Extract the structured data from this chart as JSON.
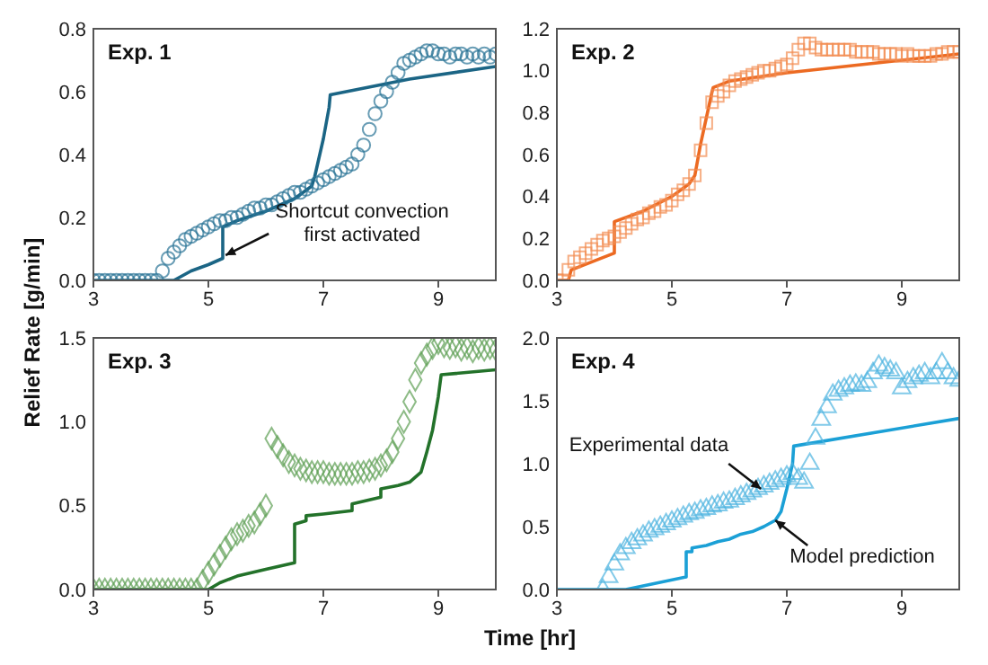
{
  "chart_data": [
    {
      "type": "scatter",
      "title": "Exp. 1",
      "ylabel": "Relief Rate [g/min]",
      "xlim": [
        3,
        10
      ],
      "xticks": [
        3,
        5,
        7,
        9
      ],
      "ylim": [
        0,
        0.8
      ],
      "yticks": [
        {
          "value": 0,
          "label": "0.0"
        },
        0.2,
        0.4,
        0.6,
        0.8
      ],
      "x": [
        3.0,
        3.1,
        3.2,
        3.3,
        3.4,
        3.5,
        3.6,
        3.7,
        3.8,
        3.9,
        4.0,
        4.1,
        4.2,
        4.3,
        4.4,
        4.5,
        4.6,
        4.7,
        4.8,
        4.9,
        5.0,
        5.1,
        5.2,
        5.3,
        5.4,
        5.5,
        5.6,
        5.7,
        5.8,
        5.9,
        6.0,
        6.1,
        6.2,
        6.3,
        6.4,
        6.5,
        6.6,
        6.7,
        6.8,
        6.9,
        7.0,
        7.1,
        7.2,
        7.3,
        7.4,
        7.5,
        7.6,
        7.7,
        7.8,
        7.9,
        8.0,
        8.1,
        8.2,
        8.3,
        8.4,
        8.5,
        8.6,
        8.7,
        8.8,
        8.9,
        9.0,
        9.1,
        9.2,
        9.3,
        9.4,
        9.5,
        9.6,
        9.7,
        9.8,
        9.9,
        10.0
      ],
      "series": [
        {
          "marker": "circle",
          "color": "#2a7396",
          "values": [
            0,
            0,
            0,
            0,
            0,
            0,
            0,
            0,
            0,
            0,
            0,
            0,
            0.03,
            0.07,
            0.09,
            0.11,
            0.13,
            0.14,
            0.15,
            0.16,
            0.17,
            0.18,
            0.19,
            0.19,
            0.2,
            0.2,
            0.21,
            0.22,
            0.23,
            0.23,
            0.24,
            0.24,
            0.25,
            0.26,
            0.27,
            0.28,
            0.28,
            0.29,
            0.3,
            0.31,
            0.32,
            0.33,
            0.34,
            0.35,
            0.36,
            0.37,
            0.4,
            0.43,
            0.48,
            0.53,
            0.57,
            0.6,
            0.63,
            0.66,
            0.69,
            0.7,
            0.71,
            0.72,
            0.73,
            0.73,
            0.72,
            0.72,
            0.71,
            0.72,
            0.72,
            0.71,
            0.72,
            0.71,
            0.72,
            0.71,
            0.72
          ]
        },
        {
          "type": "line",
          "marker": "none",
          "color": "#1b6585",
          "x": [
            3,
            4.4,
            4.7,
            5.0,
            5.25,
            5.25,
            5.5,
            6,
            6.5,
            6.8,
            6.85,
            7.0,
            7.1,
            7.12,
            8.5,
            10
          ],
          "values": [
            0,
            0,
            0.03,
            0.05,
            0.07,
            0.17,
            0.19,
            0.22,
            0.26,
            0.3,
            0.33,
            0.45,
            0.55,
            0.59,
            0.64,
            0.68
          ]
        }
      ],
      "annotations": [
        {
          "text": "Shortcut convection first activated",
          "x": 5.3,
          "y": 0.08
        }
      ]
    },
    {
      "type": "scatter",
      "title": "Exp. 2",
      "xlim": [
        3,
        10
      ],
      "xticks": [
        3,
        5,
        7,
        9
      ],
      "ylim": [
        0,
        1.2
      ],
      "yticks": [
        {
          "value": 0,
          "label": "0.0"
        },
        0.2,
        0.4,
        0.6,
        0.8,
        {
          "value": 1,
          "label": "1.0"
        },
        1.2
      ],
      "x": [
        3.0,
        3.1,
        3.2,
        3.3,
        3.4,
        3.5,
        3.6,
        3.7,
        3.8,
        3.9,
        4.0,
        4.1,
        4.2,
        4.3,
        4.4,
        4.5,
        4.6,
        4.7,
        4.8,
        4.9,
        5.0,
        5.1,
        5.2,
        5.3,
        5.4,
        5.5,
        5.6,
        5.7,
        5.8,
        5.9,
        6.0,
        6.1,
        6.2,
        6.3,
        6.4,
        6.5,
        6.6,
        6.7,
        6.8,
        6.9,
        7.0,
        7.1,
        7.2,
        7.3,
        7.4,
        7.5,
        7.6,
        7.7,
        7.8,
        7.9,
        8.0,
        8.1,
        8.2,
        8.3,
        8.4,
        8.5,
        8.6,
        8.7,
        8.8,
        8.9,
        9.0,
        9.1,
        9.2,
        9.3,
        9.4,
        9.5,
        9.6,
        9.7,
        9.8,
        9.9,
        10.0
      ],
      "series": [
        {
          "marker": "square",
          "color": "#f28c50",
          "values": [
            0,
            0,
            0.05,
            0.09,
            0.11,
            0.13,
            0.15,
            0.17,
            0.19,
            0.2,
            0.21,
            0.23,
            0.25,
            0.27,
            0.29,
            0.3,
            0.32,
            0.33,
            0.35,
            0.36,
            0.38,
            0.41,
            0.43,
            0.46,
            0.5,
            0.62,
            0.75,
            0.85,
            0.88,
            0.9,
            0.93,
            0.95,
            0.96,
            0.97,
            0.98,
            0.99,
            1.0,
            1.0,
            1.01,
            1.02,
            1.03,
            1.06,
            1.1,
            1.13,
            1.13,
            1.11,
            1.1,
            1.1,
            1.1,
            1.1,
            1.1,
            1.1,
            1.09,
            1.09,
            1.09,
            1.09,
            1.08,
            1.08,
            1.08,
            1.08,
            1.07,
            1.08,
            1.07,
            1.07,
            1.07,
            1.07,
            1.08,
            1.08,
            1.09,
            1.09,
            1.09
          ]
        },
        {
          "type": "line",
          "marker": "none",
          "color": "#ec6a22",
          "x": [
            3,
            3.2,
            3.25,
            4.0,
            4.0,
            4.5,
            5.0,
            5.3,
            5.4,
            5.5,
            5.7,
            5.72,
            6.0,
            7.0,
            8.0,
            9.0,
            10
          ],
          "values": [
            0,
            0,
            0.05,
            0.13,
            0.28,
            0.33,
            0.4,
            0.46,
            0.5,
            0.65,
            0.9,
            0.92,
            0.95,
            0.99,
            1.02,
            1.05,
            1.08
          ]
        }
      ]
    },
    {
      "type": "scatter",
      "title": "Exp. 3",
      "xlabel": "Time [hr]",
      "xlim": [
        3,
        10
      ],
      "xticks": [
        3,
        5,
        7,
        9
      ],
      "ylim": [
        0,
        1.5
      ],
      "yticks": [
        {
          "value": 0,
          "label": "0.0"
        },
        0.5,
        {
          "value": 1,
          "label": "1.0"
        },
        1.5
      ],
      "x": [
        3.0,
        3.1,
        3.2,
        3.3,
        3.4,
        3.5,
        3.6,
        3.7,
        3.8,
        3.9,
        4.0,
        4.1,
        4.2,
        4.3,
        4.4,
        4.5,
        4.6,
        4.7,
        4.8,
        4.9,
        5.0,
        5.1,
        5.2,
        5.3,
        5.4,
        5.5,
        5.6,
        5.7,
        5.8,
        5.9,
        6.0,
        6.1,
        6.2,
        6.3,
        6.4,
        6.5,
        6.6,
        6.7,
        6.8,
        6.9,
        7.0,
        7.1,
        7.2,
        7.3,
        7.4,
        7.5,
        7.6,
        7.7,
        7.8,
        7.9,
        8.0,
        8.1,
        8.2,
        8.3,
        8.4,
        8.5,
        8.6,
        8.7,
        8.8,
        8.9,
        9.0,
        9.1,
        9.2,
        9.3,
        9.4,
        9.5,
        9.6,
        9.7,
        9.8,
        9.9,
        10.0
      ],
      "series": [
        {
          "marker": "diamond",
          "color": "#5d9e52",
          "values": [
            0,
            0,
            0,
            0,
            0,
            0,
            0,
            0,
            0,
            0,
            0,
            0,
            0,
            0,
            0,
            0,
            0,
            0,
            0,
            0.05,
            0.1,
            0.15,
            0.2,
            0.25,
            0.3,
            0.33,
            0.35,
            0.38,
            0.4,
            0.45,
            0.5,
            0.9,
            0.85,
            0.8,
            0.76,
            0.74,
            0.72,
            0.71,
            0.7,
            0.7,
            0.7,
            0.69,
            0.69,
            0.69,
            0.69,
            0.69,
            0.7,
            0.7,
            0.71,
            0.72,
            0.74,
            0.77,
            0.82,
            0.9,
            1.0,
            1.12,
            1.25,
            1.35,
            1.4,
            1.44,
            1.47,
            1.45,
            1.44,
            1.45,
            1.43,
            1.44,
            1.42,
            1.44,
            1.43,
            1.44,
            1.43
          ]
        },
        {
          "type": "line",
          "marker": "none",
          "color": "#23722a",
          "x": [
            3,
            5,
            5.2,
            5.5,
            6,
            6.5,
            6.5,
            6.7,
            6.7,
            7.0,
            7.5,
            7.5,
            8.0,
            8.0,
            8.3,
            8.5,
            8.7,
            8.8,
            8.9,
            9.0,
            9.05,
            10
          ],
          "values": [
            0,
            0,
            0.04,
            0.08,
            0.12,
            0.16,
            0.39,
            0.41,
            0.44,
            0.45,
            0.47,
            0.51,
            0.55,
            0.6,
            0.62,
            0.64,
            0.7,
            0.82,
            0.95,
            1.15,
            1.28,
            1.31
          ]
        }
      ]
    },
    {
      "type": "scatter",
      "title": "Exp. 4",
      "xlim": [
        3,
        10
      ],
      "xticks": [
        3,
        5,
        7,
        9
      ],
      "ylim": [
        0,
        2
      ],
      "yticks": [
        {
          "value": 0,
          "label": "0.0"
        },
        0.5,
        {
          "value": 1,
          "label": "1.0"
        },
        1.5,
        {
          "value": 2,
          "label": "2.0"
        }
      ],
      "series": [
        {
          "marker": "triangle",
          "color": "#4db3e0",
          "x": [
            3.8,
            3.9,
            4.0,
            4.1,
            4.2,
            4.3,
            4.4,
            4.5,
            4.6,
            4.7,
            4.8,
            4.9,
            5.0,
            5.1,
            5.2,
            5.3,
            5.4,
            5.5,
            5.6,
            5.7,
            5.8,
            5.9,
            6.0,
            6.1,
            6.2,
            6.3,
            6.4,
            6.5,
            6.6,
            6.7,
            6.8,
            6.9,
            7.0,
            7.1,
            7.2,
            7.3,
            7.4,
            7.5,
            7.6,
            7.7,
            7.8,
            7.9,
            8.0,
            8.1,
            8.2,
            8.3,
            8.4,
            8.5,
            8.6,
            8.7,
            8.8,
            8.9,
            9.0,
            9.1,
            9.2,
            9.3,
            9.4,
            9.5,
            9.6,
            9.7,
            9.8,
            9.9,
            10.0
          ],
          "values": [
            0,
            0.1,
            0.2,
            0.28,
            0.33,
            0.37,
            0.4,
            0.43,
            0.46,
            0.48,
            0.5,
            0.52,
            0.54,
            0.56,
            0.58,
            0.6,
            0.61,
            0.63,
            0.64,
            0.66,
            0.67,
            0.69,
            0.7,
            0.72,
            0.74,
            0.76,
            0.78,
            0.8,
            0.82,
            0.84,
            0.86,
            0.88,
            0.9,
            0.92,
            0.88,
            0.85,
            1.0,
            1.2,
            1.35,
            1.45,
            1.55,
            1.58,
            1.6,
            1.62,
            1.63,
            1.62,
            1.65,
            1.72,
            1.78,
            1.76,
            1.74,
            1.72,
            1.6,
            1.65,
            1.68,
            1.7,
            1.72,
            1.68,
            1.72,
            1.8,
            1.72,
            1.68,
            1.66
          ]
        },
        {
          "type": "line",
          "marker": "none",
          "color": "#1ba0d6",
          "x": [
            3,
            4.2,
            5.25,
            5.25,
            5.35,
            5.35,
            5.6,
            5.8,
            6.0,
            6.2,
            6.4,
            6.6,
            6.8,
            6.9,
            7.0,
            7.1,
            7.12,
            10
          ],
          "values": [
            0,
            0,
            0.1,
            0.3,
            0.3,
            0.33,
            0.35,
            0.38,
            0.4,
            0.44,
            0.46,
            0.5,
            0.55,
            0.62,
            0.8,
            1.0,
            1.14,
            1.36
          ]
        }
      ],
      "annotations": [
        {
          "text": "Experimental data",
          "x": 6.55,
          "y": 0.8
        },
        {
          "text": "Model prediction",
          "x": 6.8,
          "y": 0.55
        }
      ]
    }
  ]
}
